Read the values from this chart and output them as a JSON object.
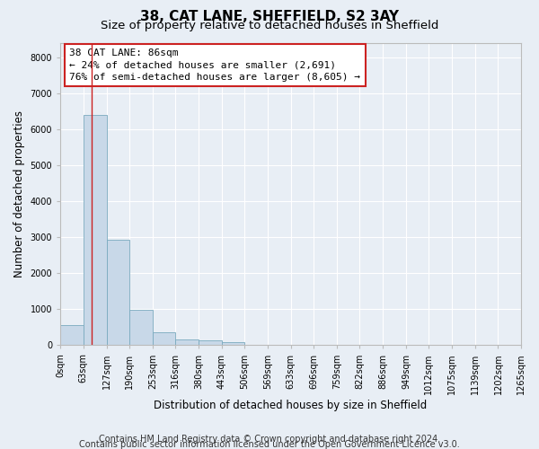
{
  "title": "38, CAT LANE, SHEFFIELD, S2 3AY",
  "subtitle": "Size of property relative to detached houses in Sheffield",
  "xlabel": "Distribution of detached houses by size in Sheffield",
  "ylabel": "Number of detached properties",
  "bar_color": "#c8d8e8",
  "bar_edge_color": "#7aaabf",
  "background_color": "#e8eef5",
  "grid_color": "white",
  "vline_x": 86,
  "vline_color": "#cc2222",
  "annotation_line1": "38 CAT LANE: 86sqm",
  "annotation_line2": "← 24% of detached houses are smaller (2,691)",
  "annotation_line3": "76% of semi-detached houses are larger (8,605) →",
  "annotation_box_color": "white",
  "annotation_box_edge_color": "#cc2222",
  "bin_edges": [
    0,
    63,
    127,
    190,
    253,
    316,
    380,
    443,
    506,
    569,
    633,
    696,
    759,
    822,
    886,
    949,
    1012,
    1075,
    1139,
    1202,
    1265
  ],
  "bin_counts": [
    560,
    6400,
    2920,
    990,
    360,
    160,
    130,
    90,
    0,
    0,
    0,
    0,
    0,
    0,
    0,
    0,
    0,
    0,
    0,
    0
  ],
  "ylim": [
    0,
    8400
  ],
  "yticks": [
    0,
    1000,
    2000,
    3000,
    4000,
    5000,
    6000,
    7000,
    8000
  ],
  "footer_line1": "Contains HM Land Registry data © Crown copyright and database right 2024.",
  "footer_line2": "Contains public sector information licensed under the Open Government Licence v3.0.",
  "footer_fontsize": 7.0,
  "title_fontsize": 11,
  "subtitle_fontsize": 9.5,
  "xlabel_fontsize": 8.5,
  "ylabel_fontsize": 8.5,
  "tick_fontsize": 7.0,
  "annotation_fontsize": 8.0
}
